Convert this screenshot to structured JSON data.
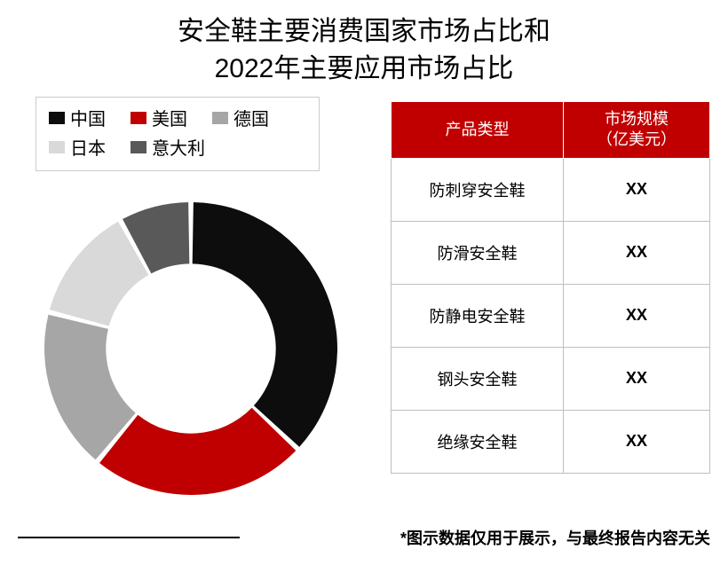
{
  "title_line1": "安全鞋主要消费国家市场占比和",
  "title_line2": "2022年主要应用市场占比",
  "donut": {
    "type": "donut",
    "inner_radius_ratio": 0.58,
    "start_angle_deg": 90,
    "background_color": "#ffffff",
    "segments": [
      {
        "label": "中国",
        "value": 37,
        "color": "#0d0d0d"
      },
      {
        "label": "美国",
        "value": 24,
        "color": "#c00000"
      },
      {
        "label": "德国",
        "value": 18,
        "color": "#a6a6a6"
      },
      {
        "label": "日本",
        "value": 13,
        "color": "#d9d9d9"
      },
      {
        "label": "意大利",
        "value": 8,
        "color": "#595959"
      }
    ],
    "gap_deg": 2
  },
  "legend_swatch_size": {
    "w": 18,
    "h": 14
  },
  "table": {
    "header_bg": "#c00000",
    "header_fg": "#ffffff",
    "border_color": "#bfbfbf",
    "columns": [
      "产品类型",
      "市场规模\n（亿美元）"
    ],
    "rows": [
      [
        "防刺穿安全鞋",
        "XX"
      ],
      [
        "防滑安全鞋",
        "XX"
      ],
      [
        "防静电安全鞋",
        "XX"
      ],
      [
        "钢头安全鞋",
        "XX"
      ],
      [
        "绝缘安全鞋",
        "XX"
      ]
    ]
  },
  "footnote": "*图示数据仅用于展示，与最终报告内容无关"
}
